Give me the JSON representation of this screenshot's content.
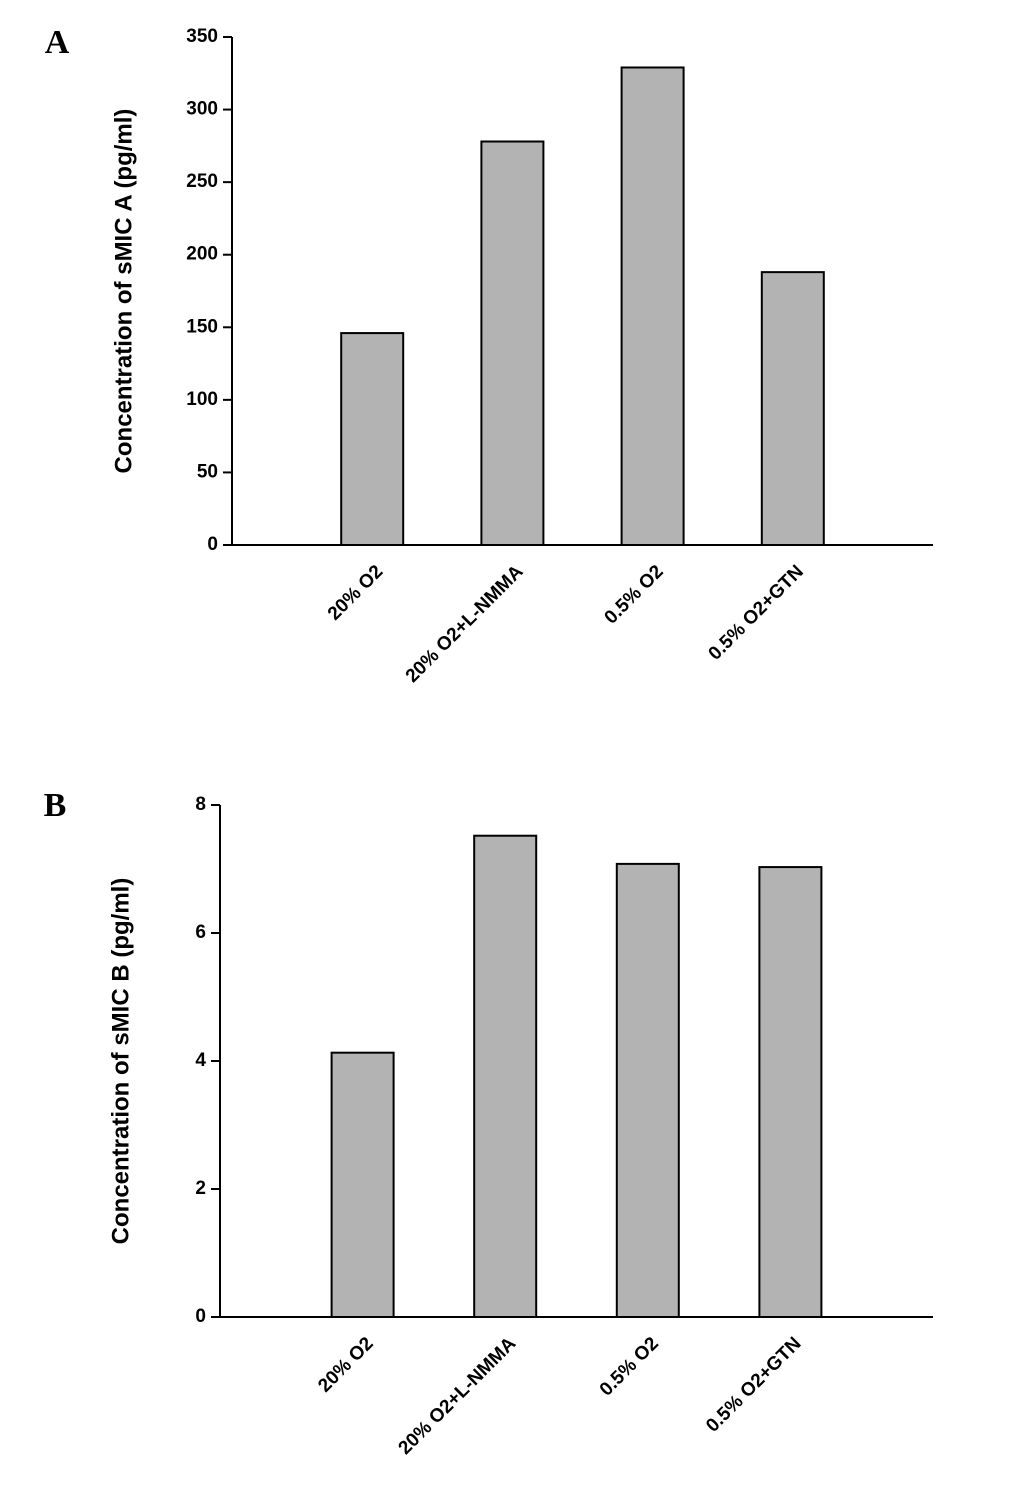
{
  "chart_data": [
    {
      "type": "bar",
      "panel": "A",
      "y_label": "Concentration of sMIC A (pg/ml)",
      "categories": [
        "20% O2",
        "20% O2+L-NMMA",
        "0.5% O2",
        "0.5% O2+GTN"
      ],
      "values": [
        146,
        278,
        329,
        188
      ],
      "color": "#b3b3b3",
      "ylim": [
        0,
        350
      ],
      "yticks": [
        0,
        50,
        100,
        150,
        200,
        250,
        300,
        350
      ]
    },
    {
      "type": "bar",
      "panel": "B",
      "y_label": "Concentration of sMIC B (pg/ml)",
      "categories": [
        "20% O2",
        "20% O2+L-NMMA",
        "0.5% O2",
        "0.5% O2+GTN"
      ],
      "values": [
        4.13,
        7.52,
        7.08,
        7.03
      ],
      "color": "#b3b3b3",
      "ylim": [
        0,
        8
      ],
      "yticks": [
        0,
        2,
        4,
        6,
        8
      ]
    }
  ]
}
